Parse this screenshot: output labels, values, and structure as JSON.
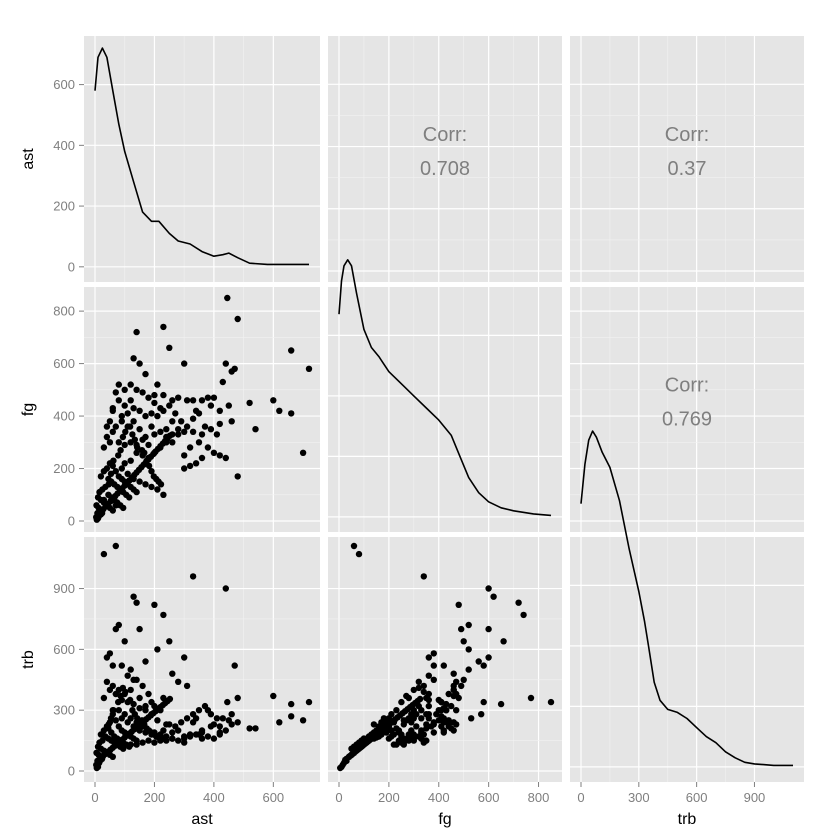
{
  "chart_data": {
    "type": "scatter",
    "variables": [
      "ast",
      "fg",
      "trb"
    ],
    "axis_labels": {
      "x": [
        "ast",
        "fg",
        "trb"
      ],
      "y": [
        "ast",
        "fg",
        "trb"
      ]
    },
    "ranges": {
      "ast": [
        0,
        720
      ],
      "fg": [
        0,
        850
      ],
      "trb": [
        0,
        1100
      ]
    },
    "ticks": {
      "ast": [
        0,
        200,
        400,
        600
      ],
      "fg": [
        0,
        200,
        400,
        600,
        800
      ],
      "trb": [
        0,
        300,
        600,
        900
      ]
    },
    "diagonal_ticks": {
      "ast": [
        0,
        200,
        400,
        600
      ],
      "fg": [
        0,
        200,
        400,
        600,
        800
      ],
      "trb": [
        0,
        300,
        600,
        900
      ]
    },
    "correlations": [
      {
        "x": "fg",
        "y": "ast",
        "label": "Corr:",
        "value": "0.708"
      },
      {
        "x": "trb",
        "y": "ast",
        "label": "Corr:",
        "value": "0.37"
      },
      {
        "x": "trb",
        "y": "fg",
        "label": "Corr:",
        "value": "0.769"
      }
    ],
    "densities": {
      "ast": [
        [
          0,
          580
        ],
        [
          10,
          690
        ],
        [
          25,
          720
        ],
        [
          40,
          690
        ],
        [
          60,
          580
        ],
        [
          80,
          470
        ],
        [
          100,
          380
        ],
        [
          130,
          280
        ],
        [
          160,
          180
        ],
        [
          190,
          150
        ],
        [
          215,
          150
        ],
        [
          250,
          110
        ],
        [
          280,
          85
        ],
        [
          320,
          75
        ],
        [
          360,
          50
        ],
        [
          400,
          35
        ],
        [
          430,
          40
        ],
        [
          450,
          45
        ],
        [
          480,
          30
        ],
        [
          520,
          12
        ],
        [
          580,
          8
        ],
        [
          650,
          8
        ],
        [
          720,
          8
        ]
      ],
      "fg": [
        [
          0,
          670
        ],
        [
          10,
          780
        ],
        [
          20,
          830
        ],
        [
          35,
          850
        ],
        [
          50,
          830
        ],
        [
          70,
          740
        ],
        [
          100,
          620
        ],
        [
          130,
          560
        ],
        [
          160,
          530
        ],
        [
          200,
          480
        ],
        [
          250,
          440
        ],
        [
          300,
          400
        ],
        [
          350,
          360
        ],
        [
          400,
          320
        ],
        [
          450,
          270
        ],
        [
          480,
          210
        ],
        [
          520,
          130
        ],
        [
          560,
          80
        ],
        [
          600,
          50
        ],
        [
          650,
          30
        ],
        [
          700,
          20
        ],
        [
          780,
          10
        ],
        [
          850,
          5
        ]
      ],
      "trb": [
        [
          0,
          870
        ],
        [
          20,
          1000
        ],
        [
          40,
          1080
        ],
        [
          60,
          1110
        ],
        [
          80,
          1090
        ],
        [
          110,
          1040
        ],
        [
          150,
          990
        ],
        [
          200,
          880
        ],
        [
          250,
          720
        ],
        [
          300,
          580
        ],
        [
          330,
          480
        ],
        [
          350,
          400
        ],
        [
          380,
          280
        ],
        [
          410,
          220
        ],
        [
          450,
          190
        ],
        [
          500,
          180
        ],
        [
          550,
          160
        ],
        [
          600,
          130
        ],
        [
          650,
          100
        ],
        [
          700,
          80
        ],
        [
          750,
          50
        ],
        [
          800,
          30
        ],
        [
          850,
          15
        ],
        [
          900,
          10
        ],
        [
          1000,
          5
        ],
        [
          1100,
          5
        ]
      ]
    },
    "points": [
      [
        30,
        80,
        1070
      ],
      [
        70,
        60,
        1110
      ],
      [
        330,
        340,
        960
      ],
      [
        440,
        600,
        900
      ],
      [
        140,
        720,
        830
      ],
      [
        230,
        740,
        770
      ],
      [
        200,
        480,
        820
      ],
      [
        130,
        620,
        860
      ],
      [
        480,
        770,
        360
      ],
      [
        445,
        850,
        340
      ],
      [
        720,
        580,
        340
      ],
      [
        700,
        260,
        250
      ],
      [
        660,
        650,
        330
      ],
      [
        660,
        410,
        270
      ],
      [
        600,
        460,
        370
      ],
      [
        620,
        420,
        240
      ],
      [
        540,
        350,
        210
      ],
      [
        520,
        450,
        210
      ],
      [
        480,
        170,
        240
      ],
      [
        470,
        580,
        520
      ],
      [
        460,
        570,
        280
      ],
      [
        430,
        530,
        260
      ],
      [
        400,
        470,
        230
      ],
      [
        380,
        470,
        300
      ],
      [
        360,
        460,
        200
      ],
      [
        340,
        420,
        260
      ],
      [
        330,
        460,
        240
      ],
      [
        420,
        420,
        190
      ],
      [
        450,
        440,
        250
      ],
      [
        460,
        380,
        230
      ],
      [
        420,
        370,
        220
      ],
      [
        390,
        440,
        220
      ],
      [
        360,
        330,
        160
      ],
      [
        350,
        300,
        180
      ],
      [
        320,
        280,
        180
      ],
      [
        300,
        250,
        170
      ],
      [
        280,
        330,
        200
      ],
      [
        260,
        300,
        160
      ],
      [
        240,
        300,
        150
      ],
      [
        220,
        280,
        150
      ],
      [
        200,
        260,
        140
      ],
      [
        180,
        240,
        150
      ],
      [
        160,
        250,
        140
      ],
      [
        140,
        260,
        130
      ],
      [
        120,
        230,
        130
      ],
      [
        100,
        220,
        130
      ],
      [
        260,
        380,
        190
      ],
      [
        240,
        350,
        230
      ],
      [
        220,
        430,
        300
      ],
      [
        200,
        450,
        320
      ],
      [
        180,
        470,
        380
      ],
      [
        160,
        490,
        420
      ],
      [
        140,
        500,
        450
      ],
      [
        120,
        460,
        400
      ],
      [
        100,
        440,
        380
      ],
      [
        80,
        460,
        400
      ],
      [
        60,
        430,
        300
      ],
      [
        260,
        460,
        480
      ],
      [
        300,
        600,
        560
      ],
      [
        250,
        660,
        640
      ],
      [
        210,
        520,
        600
      ],
      [
        170,
        560,
        540
      ],
      [
        150,
        600,
        700
      ],
      [
        120,
        520,
        500
      ],
      [
        100,
        500,
        640
      ],
      [
        80,
        520,
        720
      ],
      [
        70,
        490,
        700
      ],
      [
        60,
        420,
        520
      ],
      [
        50,
        380,
        580
      ],
      [
        40,
        360,
        560
      ],
      [
        90,
        380,
        520
      ],
      [
        110,
        360,
        470
      ],
      [
        130,
        380,
        450
      ],
      [
        150,
        350,
        360
      ],
      [
        170,
        320,
        320
      ],
      [
        190,
        360,
        280
      ],
      [
        210,
        400,
        250
      ],
      [
        230,
        420,
        200
      ],
      [
        250,
        440,
        230
      ],
      [
        270,
        410,
        220
      ],
      [
        290,
        380,
        240
      ],
      [
        310,
        360,
        260
      ],
      [
        330,
        390,
        280
      ],
      [
        350,
        410,
        300
      ],
      [
        370,
        360,
        320
      ],
      [
        390,
        350,
        280
      ],
      [
        410,
        330,
        260
      ],
      [
        310,
        460,
        420
      ],
      [
        280,
        470,
        440
      ],
      [
        230,
        480,
        360
      ],
      [
        190,
        410,
        340
      ],
      [
        170,
        400,
        300
      ],
      [
        150,
        420,
        310
      ],
      [
        130,
        430,
        330
      ],
      [
        110,
        410,
        340
      ],
      [
        90,
        400,
        350
      ],
      [
        70,
        360,
        380
      ],
      [
        60,
        340,
        420
      ],
      [
        50,
        300,
        400
      ],
      [
        40,
        320,
        440
      ],
      [
        30,
        280,
        360
      ],
      [
        80,
        300,
        300
      ],
      [
        100,
        290,
        280
      ],
      [
        120,
        300,
        260
      ],
      [
        140,
        290,
        240
      ],
      [
        160,
        310,
        220
      ],
      [
        180,
        290,
        200
      ],
      [
        200,
        330,
        190
      ],
      [
        220,
        340,
        180
      ],
      [
        240,
        320,
        170
      ],
      [
        260,
        330,
        160
      ],
      [
        280,
        350,
        150
      ],
      [
        300,
        340,
        140
      ],
      [
        90,
        200,
        260
      ],
      [
        110,
        180,
        240
      ],
      [
        130,
        160,
        220
      ],
      [
        150,
        150,
        200
      ],
      [
        170,
        140,
        190
      ],
      [
        190,
        130,
        180
      ],
      [
        210,
        120,
        170
      ],
      [
        230,
        100,
        160
      ],
      [
        60,
        210,
        280
      ],
      [
        70,
        190,
        250
      ],
      [
        80,
        170,
        220
      ],
      [
        90,
        160,
        200
      ],
      [
        100,
        150,
        190
      ],
      [
        110,
        140,
        180
      ],
      [
        120,
        130,
        170
      ],
      [
        130,
        120,
        160
      ],
      [
        140,
        110,
        150
      ],
      [
        50,
        220,
        240
      ],
      [
        40,
        200,
        220
      ],
      [
        30,
        190,
        200
      ],
      [
        20,
        170,
        180
      ],
      [
        45,
        160,
        210
      ],
      [
        55,
        150,
        190
      ],
      [
        65,
        140,
        170
      ],
      [
        75,
        130,
        160
      ],
      [
        85,
        120,
        150
      ],
      [
        95,
        110,
        140
      ],
      [
        105,
        100,
        130
      ],
      [
        115,
        90,
        120
      ],
      [
        35,
        130,
        170
      ],
      [
        25,
        120,
        150
      ],
      [
        15,
        110,
        140
      ],
      [
        45,
        100,
        160
      ],
      [
        55,
        90,
        150
      ],
      [
        65,
        80,
        140
      ],
      [
        75,
        70,
        130
      ],
      [
        85,
        60,
        120
      ],
      [
        95,
        50,
        110
      ],
      [
        10,
        90,
        120
      ],
      [
        20,
        80,
        110
      ],
      [
        30,
        70,
        100
      ],
      [
        40,
        60,
        90
      ],
      [
        50,
        50,
        80
      ],
      [
        60,
        40,
        70
      ],
      [
        5,
        60,
        90
      ],
      [
        12,
        50,
        80
      ],
      [
        18,
        40,
        70
      ],
      [
        24,
        30,
        60
      ],
      [
        8,
        30,
        50
      ],
      [
        14,
        20,
        40
      ],
      [
        4,
        15,
        30
      ],
      [
        10,
        10,
        20
      ],
      [
        6,
        5,
        15
      ],
      [
        20,
        25,
        55
      ],
      [
        28,
        45,
        75
      ],
      [
        36,
        55,
        85
      ],
      [
        44,
        65,
        95
      ],
      [
        52,
        75,
        105
      ],
      [
        60,
        85,
        115
      ],
      [
        68,
        95,
        125
      ],
      [
        76,
        105,
        135
      ],
      [
        84,
        115,
        145
      ],
      [
        92,
        125,
        155
      ],
      [
        100,
        135,
        165
      ],
      [
        108,
        145,
        175
      ],
      [
        116,
        155,
        185
      ],
      [
        124,
        165,
        195
      ],
      [
        132,
        175,
        205
      ],
      [
        140,
        185,
        215
      ],
      [
        148,
        195,
        225
      ],
      [
        156,
        205,
        235
      ],
      [
        164,
        215,
        245
      ],
      [
        172,
        225,
        255
      ],
      [
        180,
        235,
        265
      ],
      [
        188,
        245,
        275
      ],
      [
        196,
        255,
        285
      ],
      [
        204,
        265,
        295
      ],
      [
        212,
        275,
        305
      ],
      [
        220,
        285,
        315
      ],
      [
        228,
        295,
        325
      ],
      [
        236,
        305,
        335
      ],
      [
        244,
        315,
        345
      ],
      [
        252,
        325,
        355
      ],
      [
        46,
        140,
        230
      ],
      [
        54,
        180,
        260
      ],
      [
        62,
        230,
        300
      ],
      [
        78,
        250,
        340
      ],
      [
        86,
        270,
        370
      ],
      [
        94,
        320,
        410
      ],
      [
        102,
        340,
        390
      ],
      [
        118,
        360,
        350
      ],
      [
        126,
        330,
        300
      ],
      [
        134,
        310,
        280
      ],
      [
        142,
        280,
        260
      ],
      [
        158,
        270,
        250
      ],
      [
        166,
        260,
        230
      ],
      [
        174,
        230,
        210
      ],
      [
        182,
        210,
        200
      ],
      [
        190,
        190,
        190
      ],
      [
        198,
        170,
        180
      ],
      [
        206,
        160,
        170
      ],
      [
        214,
        150,
        165
      ],
      [
        222,
        140,
        160
      ],
      [
        380,
        280,
        170
      ],
      [
        400,
        260,
        160
      ],
      [
        420,
        250,
        180
      ],
      [
        440,
        240,
        200
      ],
      [
        360,
        240,
        190
      ],
      [
        340,
        220,
        180
      ],
      [
        320,
        210,
        170
      ],
      [
        300,
        200,
        160
      ]
    ]
  }
}
